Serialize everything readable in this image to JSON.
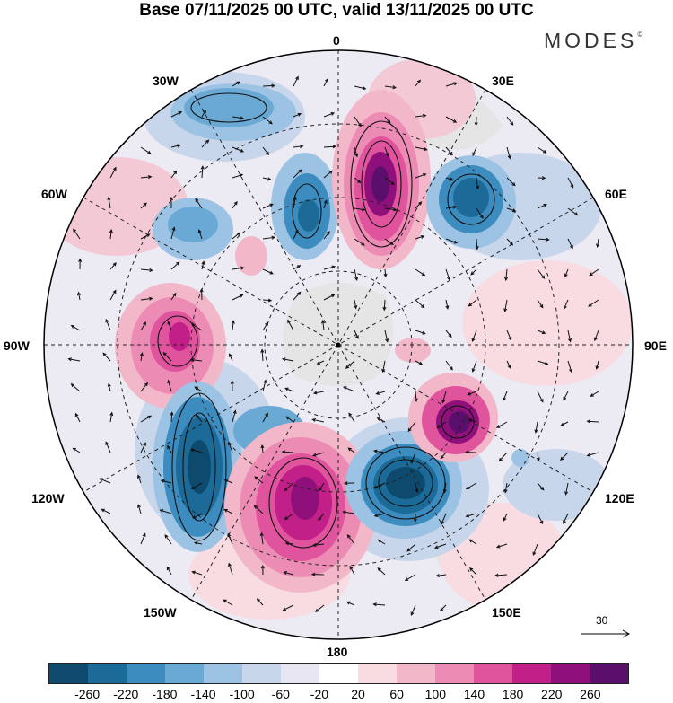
{
  "title": "Base 07/11/2025 00 UTC, valid 13/11/2025 00 UTC",
  "logo": "MODES",
  "logo_mark": "©",
  "longitude_labels": {
    "lon_0": "0",
    "lon_30e": "30E",
    "lon_60e": "60E",
    "lon_90e": "90E",
    "lon_120e": "120E",
    "lon_150e": "150E",
    "lon_180": "180",
    "lon_150w": "150W",
    "lon_120w": "120W",
    "lon_90w": "90W",
    "lon_60w": "60W",
    "lon_30w": "30W"
  },
  "reference_vector": "30",
  "colorbar": {
    "colors": [
      "#0e4a6e",
      "#1b6a98",
      "#3d8cbf",
      "#6aa9d4",
      "#9cc3e3",
      "#c8d6ec",
      "#e8e6f2",
      "#ffffff",
      "#f8dce2",
      "#f2b7c8",
      "#ec8cb4",
      "#e0549e",
      "#c21f88",
      "#8f107a",
      "#5a0f6d"
    ],
    "ticks": [
      "-260",
      "-220",
      "-180",
      "-140",
      "-100",
      "-60",
      "-20",
      "20",
      "60",
      "100",
      "140",
      "180",
      "220",
      "260"
    ]
  }
}
